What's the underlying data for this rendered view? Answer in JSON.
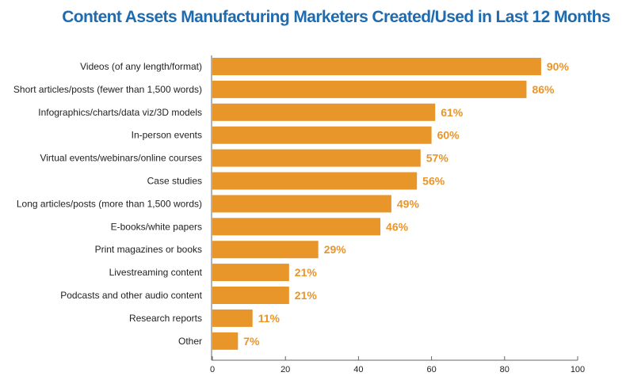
{
  "chart_data": {
    "type": "bar",
    "orientation": "horizontal",
    "title": "Content Assets Manufacturing Marketers Created/Used in Last 12 Months",
    "xlabel": "",
    "ylabel": "",
    "xlim": [
      0,
      100
    ],
    "xticks": [
      0,
      20,
      40,
      60,
      80,
      100
    ],
    "grid": false,
    "bar_color": "#e8952a",
    "title_color": "#1f6bb0",
    "categories": [
      "Videos (of any length/format)",
      "Short articles/posts (fewer than 1,500 words)",
      "Infographics/charts/data viz/3D models",
      "In-person events",
      "Virtual events/webinars/online courses",
      "Case studies",
      "Long articles/posts (more than 1,500 words)",
      "E-books/white papers",
      "Print magazines or books",
      "Livestreaming content",
      "Podcasts and other audio content",
      "Research reports",
      "Other"
    ],
    "values": [
      90,
      86,
      61,
      60,
      57,
      56,
      49,
      46,
      29,
      21,
      21,
      11,
      7
    ],
    "value_labels": [
      "90%",
      "86%",
      "61%",
      "60%",
      "57%",
      "56%",
      "49%",
      "46%",
      "29%",
      "21%",
      "21%",
      "11%",
      "7%"
    ]
  }
}
